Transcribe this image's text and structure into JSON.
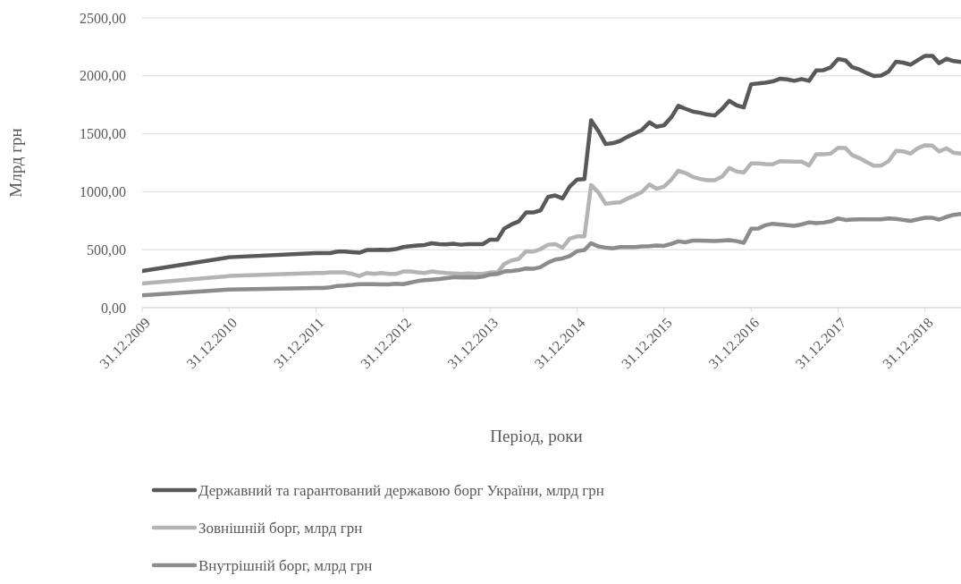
{
  "chart_data": {
    "type": "line",
    "xlabel": "Період, роки",
    "ylabel": "Млрд грн",
    "x": [
      "2009-12-31",
      "2010-12-31",
      "2011-12-31",
      "2012-01-31",
      "2012-02-29",
      "2012-03-31",
      "2012-04-30",
      "2012-05-31",
      "2012-06-30",
      "2012-07-31",
      "2012-08-31",
      "2012-09-30",
      "2012-10-31",
      "2012-11-30",
      "2012-12-31",
      "2013-01-31",
      "2013-02-28",
      "2013-03-31",
      "2013-04-30",
      "2013-05-31",
      "2013-06-30",
      "2013-07-31",
      "2013-08-31",
      "2013-09-30",
      "2013-10-31",
      "2013-11-30",
      "2013-12-31",
      "2014-01-31",
      "2014-02-28",
      "2014-03-31",
      "2014-04-30",
      "2014-05-31",
      "2014-06-30",
      "2014-07-31",
      "2014-08-31",
      "2014-09-30",
      "2014-10-31",
      "2014-11-30",
      "2014-12-31",
      "2015-01-31",
      "2015-02-28",
      "2015-03-31",
      "2015-04-30",
      "2015-05-31",
      "2015-06-30",
      "2015-07-31",
      "2015-08-31",
      "2015-09-30",
      "2015-10-31",
      "2015-11-30",
      "2015-12-31",
      "2016-01-31",
      "2016-02-29",
      "2016-03-31",
      "2016-04-30",
      "2016-05-31",
      "2016-06-30",
      "2016-07-31",
      "2016-08-31",
      "2016-09-30",
      "2016-10-31",
      "2016-11-30",
      "2016-12-31",
      "2017-01-31",
      "2017-02-28",
      "2017-03-31",
      "2017-04-30",
      "2017-05-31",
      "2017-06-30",
      "2017-07-31",
      "2017-08-31",
      "2017-09-30",
      "2017-10-31",
      "2017-11-30",
      "2017-12-31",
      "2018-01-31",
      "2018-02-28",
      "2018-03-31",
      "2018-04-30",
      "2018-05-31",
      "2018-06-30",
      "2018-07-31",
      "2018-08-31",
      "2018-09-30",
      "2018-10-31",
      "2018-11-30",
      "2018-12-31",
      "2019-01-31",
      "2019-02-28",
      "2019-03-31",
      "2019-04-30",
      "2019-05-31"
    ],
    "series": [
      {
        "name": "Державний та гарантований державою борг України, млрд грн",
        "color": "#595959",
        "values": [
          317,
          435,
          471,
          471,
          471,
          484,
          484,
          479,
          474,
          497,
          497,
          500,
          497,
          505,
          523,
          530,
          536,
          541,
          556,
          548,
          546,
          551,
          543,
          548,
          548,
          548,
          587,
          587,
          682,
          718,
          744,
          821,
          821,
          839,
          955,
          968,
          942,
          1045,
          1105,
          1110,
          1617,
          1522,
          1411,
          1419,
          1439,
          1475,
          1504,
          1534,
          1599,
          1560,
          1573,
          1643,
          1741,
          1715,
          1692,
          1681,
          1666,
          1658,
          1715,
          1784,
          1746,
          1728,
          1928,
          1934,
          1941,
          1952,
          1975,
          1970,
          1957,
          1972,
          1957,
          2047,
          2049,
          2073,
          2145,
          2134,
          2075,
          2055,
          2024,
          1998,
          2003,
          2037,
          2122,
          2114,
          2096,
          2134,
          2173,
          2173,
          2109,
          2147,
          2127,
          2119
        ]
      },
      {
        "name": "Зовнішній борг, млрд грн",
        "color": "#b4b4b4",
        "values": [
          209,
          273,
          299,
          299,
          304,
          304,
          304,
          291,
          273,
          299,
          291,
          299,
          291,
          291,
          312,
          312,
          304,
          299,
          312,
          304,
          299,
          296,
          291,
          296,
          291,
          291,
          304,
          304,
          376,
          407,
          420,
          487,
          484,
          505,
          543,
          548,
          518,
          595,
          615,
          615,
          1058,
          994,
          896,
          904,
          909,
          942,
          968,
          999,
          1063,
          1025,
          1045,
          1105,
          1182,
          1161,
          1128,
          1110,
          1099,
          1099,
          1130,
          1205,
          1174,
          1166,
          1244,
          1244,
          1238,
          1236,
          1264,
          1262,
          1259,
          1259,
          1226,
          1323,
          1323,
          1329,
          1380,
          1377,
          1316,
          1290,
          1256,
          1223,
          1226,
          1264,
          1352,
          1349,
          1329,
          1375,
          1401,
          1398,
          1347,
          1375,
          1336,
          1329
        ]
      },
      {
        "name": "Внутрішній борг, млрд грн",
        "color": "#8c8c8c",
        "values": [
          106,
          157,
          170,
          170,
          175,
          188,
          191,
          196,
          203,
          203,
          203,
          201,
          201,
          206,
          203,
          216,
          229,
          237,
          242,
          247,
          255,
          263,
          260,
          263,
          260,
          268,
          286,
          291,
          312,
          317,
          324,
          337,
          335,
          350,
          389,
          415,
          425,
          445,
          487,
          497,
          556,
          528,
          518,
          512,
          523,
          523,
          523,
          528,
          530,
          536,
          533,
          551,
          572,
          564,
          579,
          579,
          577,
          574,
          579,
          582,
          574,
          559,
          680,
          682,
          711,
          724,
          718,
          711,
          706,
          718,
          736,
          729,
          734,
          744,
          770,
          757,
          760,
          762,
          762,
          762,
          762,
          770,
          765,
          757,
          749,
          762,
          775,
          775,
          760,
          783,
          801,
          808
        ]
      }
    ],
    "xlim": [
      "2009-12-31",
      "2019-05-31"
    ],
    "xticks": [
      {
        "value": "2009-12-31",
        "label": "31.12.2009"
      },
      {
        "value": "2010-12-31",
        "label": "31.12.2010"
      },
      {
        "value": "2011-12-31",
        "label": "31.12.2011"
      },
      {
        "value": "2012-12-31",
        "label": "31.12.2012"
      },
      {
        "value": "2013-12-31",
        "label": "31.12.2013"
      },
      {
        "value": "2014-12-31",
        "label": "31.12.2014"
      },
      {
        "value": "2015-12-31",
        "label": "31.12.2015"
      },
      {
        "value": "2016-12-31",
        "label": "31.12.2016"
      },
      {
        "value": "2017-12-31",
        "label": "31.12.2017"
      },
      {
        "value": "2018-12-31",
        "label": "31.12.2018"
      }
    ],
    "ylim": [
      0,
      2500
    ],
    "yticks": [
      {
        "value": 0,
        "label": "0,00"
      },
      {
        "value": 500,
        "label": "500,00"
      },
      {
        "value": 1000,
        "label": "1000,00"
      },
      {
        "value": 1500,
        "label": "1500,00"
      },
      {
        "value": 2000,
        "label": "2000,00"
      },
      {
        "value": 2500,
        "label": "2500,00"
      }
    ],
    "grid": "y",
    "legend": "bottom",
    "marker": "none",
    "line_style": "solid"
  }
}
